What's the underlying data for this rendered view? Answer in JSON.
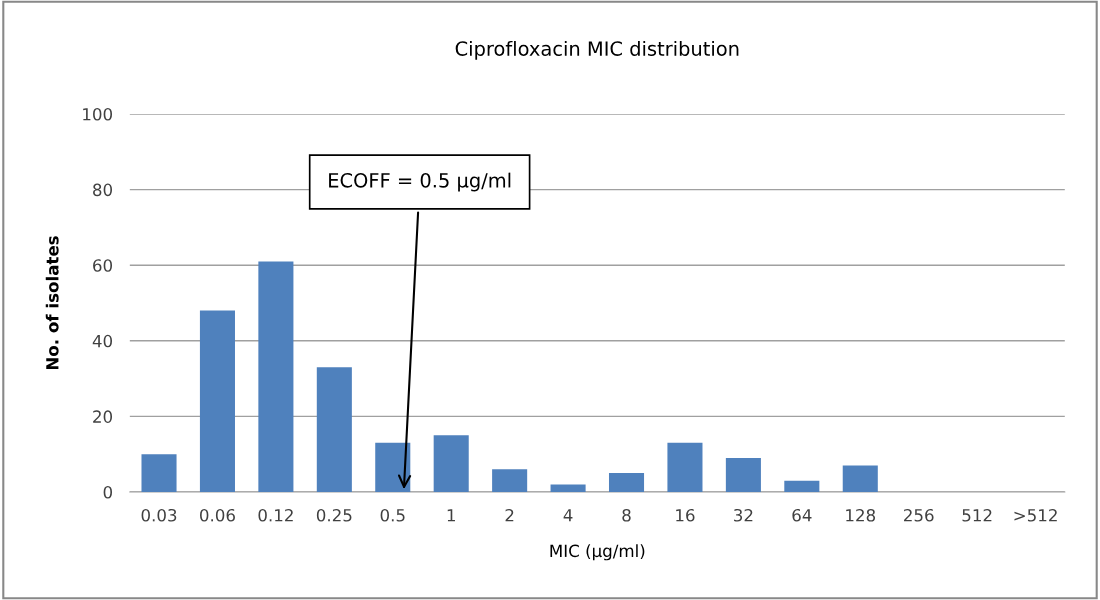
{
  "chart_data": {
    "type": "bar",
    "title": "Ciprofloxacin MIC distribution",
    "xlabel": "MIC (µg/ml)",
    "ylabel": "No. of isolates",
    "categories": [
      "0.03",
      "0.06",
      "0.12",
      "0.25",
      "0.5",
      "1",
      "2",
      "4",
      "8",
      "16",
      "32",
      "64",
      "128",
      "256",
      "512",
      ">512"
    ],
    "values": [
      10,
      48,
      61,
      33,
      13,
      15,
      6,
      2,
      5,
      13,
      9,
      3,
      7,
      0,
      0,
      0
    ],
    "color": "#4f81bd",
    "ylim": [
      0,
      100
    ],
    "yticks": [
      0,
      20,
      40,
      60,
      80,
      100
    ],
    "grid": "y",
    "annotations": [
      "ECOFF = 0.5 µg/ml"
    ]
  }
}
